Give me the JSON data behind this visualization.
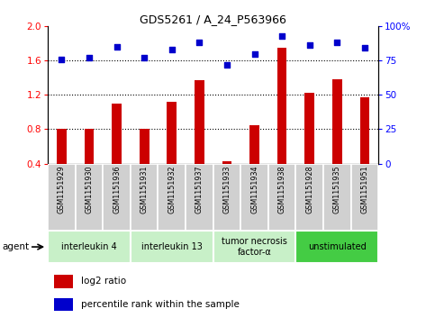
{
  "title": "GDS5261 / A_24_P563966",
  "samples": [
    "GSM1151929",
    "GSM1151930",
    "GSM1151936",
    "GSM1151931",
    "GSM1151932",
    "GSM1151937",
    "GSM1151933",
    "GSM1151934",
    "GSM1151938",
    "GSM1151928",
    "GSM1151935",
    "GSM1151951"
  ],
  "log2_ratio": [
    0.8,
    0.8,
    1.1,
    0.8,
    1.12,
    1.37,
    0.43,
    0.85,
    1.75,
    1.22,
    1.38,
    1.17
  ],
  "percentile_rank": [
    76,
    77,
    85,
    77,
    83,
    88,
    72,
    80,
    93,
    86,
    88,
    84
  ],
  "groups": [
    {
      "label": "interleukin 4",
      "start": 0,
      "end": 2,
      "color": "#c8f0c8"
    },
    {
      "label": "interleukin 13",
      "start": 3,
      "end": 5,
      "color": "#c8f0c8"
    },
    {
      "label": "tumor necrosis\nfactor-α",
      "start": 6,
      "end": 8,
      "color": "#c8f0c8"
    },
    {
      "label": "unstimulated",
      "start": 9,
      "end": 11,
      "color": "#44cc44"
    }
  ],
  "ylim_left": [
    0.4,
    2.0
  ],
  "ylim_right": [
    0,
    100
  ],
  "yticks_left": [
    0.4,
    0.8,
    1.2,
    1.6,
    2.0
  ],
  "yticks_right": [
    0,
    25,
    50,
    75,
    100
  ],
  "bar_color": "#cc0000",
  "dot_color": "#0000cc",
  "hlines": [
    0.8,
    1.2,
    1.6
  ],
  "agent_label": "agent",
  "legend_bar": "log2 ratio",
  "legend_dot": "percentile rank within the sample",
  "bar_width": 0.35,
  "background_color": "#d0d0d0",
  "xlim": [
    -0.5,
    11.5
  ]
}
